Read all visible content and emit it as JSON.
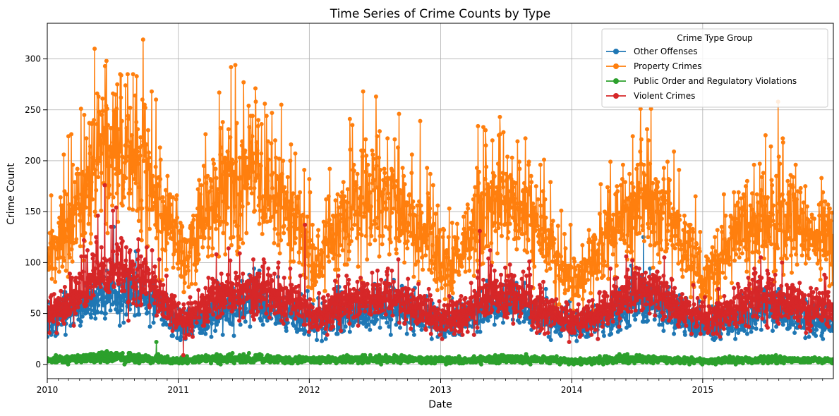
{
  "chart_data": {
    "type": "line",
    "title": "Time Series of Crime Counts by Type",
    "xlabel": "Date",
    "ylabel": "Crime Count",
    "xlim": [
      "2010-01-01",
      "2015-12-31"
    ],
    "ylim": [
      -14,
      335
    ],
    "x_ticks": [
      "2010",
      "2011",
      "2012",
      "2013",
      "2014",
      "2015"
    ],
    "y_ticks": [
      0,
      50,
      100,
      150,
      200,
      250,
      300
    ],
    "grid": true,
    "markers": true,
    "legend": {
      "title": "Crime Type Group",
      "placement": "top-right"
    },
    "frequency": "daily",
    "series": [
      {
        "name": "Other Offenses",
        "color": "#1f77b4",
        "monthly_mean": [
          {
            "x": "2010-01",
            "y": 42
          },
          {
            "x": "2010-03",
            "y": 52
          },
          {
            "x": "2010-05",
            "y": 65
          },
          {
            "x": "2010-07",
            "y": 70
          },
          {
            "x": "2010-09",
            "y": 68
          },
          {
            "x": "2010-11",
            "y": 52
          },
          {
            "x": "2011-01",
            "y": 38
          },
          {
            "x": "2011-03",
            "y": 45
          },
          {
            "x": "2011-05",
            "y": 55
          },
          {
            "x": "2011-07",
            "y": 60
          },
          {
            "x": "2011-09",
            "y": 58
          },
          {
            "x": "2011-11",
            "y": 50
          },
          {
            "x": "2012-01",
            "y": 42
          },
          {
            "x": "2012-03",
            "y": 46
          },
          {
            "x": "2012-05",
            "y": 52
          },
          {
            "x": "2012-07",
            "y": 55
          },
          {
            "x": "2012-09",
            "y": 52
          },
          {
            "x": "2012-11",
            "y": 46
          },
          {
            "x": "2013-01",
            "y": 40
          },
          {
            "x": "2013-03",
            "y": 46
          },
          {
            "x": "2013-05",
            "y": 55
          },
          {
            "x": "2013-07",
            "y": 58
          },
          {
            "x": "2013-09",
            "y": 52
          },
          {
            "x": "2013-11",
            "y": 42
          },
          {
            "x": "2014-01",
            "y": 36
          },
          {
            "x": "2014-03",
            "y": 44
          },
          {
            "x": "2014-05",
            "y": 55
          },
          {
            "x": "2014-07",
            "y": 62
          },
          {
            "x": "2014-09",
            "y": 55
          },
          {
            "x": "2014-11",
            "y": 44
          },
          {
            "x": "2015-01",
            "y": 36
          },
          {
            "x": "2015-03",
            "y": 42
          },
          {
            "x": "2015-05",
            "y": 50
          },
          {
            "x": "2015-07",
            "y": 55
          },
          {
            "x": "2015-09",
            "y": 48
          },
          {
            "x": "2015-11",
            "y": 40
          }
        ]
      },
      {
        "name": "Property Crimes",
        "color": "#ff7f0e",
        "monthly_mean": [
          {
            "x": "2010-01",
            "y": 110
          },
          {
            "x": "2010-03",
            "y": 145
          },
          {
            "x": "2010-05",
            "y": 195
          },
          {
            "x": "2010-07",
            "y": 210
          },
          {
            "x": "2010-09",
            "y": 195
          },
          {
            "x": "2010-11",
            "y": 150
          },
          {
            "x": "2011-01",
            "y": 100
          },
          {
            "x": "2011-03",
            "y": 140
          },
          {
            "x": "2011-05",
            "y": 175
          },
          {
            "x": "2011-07",
            "y": 185
          },
          {
            "x": "2011-09",
            "y": 170
          },
          {
            "x": "2011-11",
            "y": 150
          },
          {
            "x": "2012-01",
            "y": 100
          },
          {
            "x": "2012-03",
            "y": 125
          },
          {
            "x": "2012-05",
            "y": 160
          },
          {
            "x": "2012-07",
            "y": 165
          },
          {
            "x": "2012-09",
            "y": 155
          },
          {
            "x": "2012-11",
            "y": 125
          },
          {
            "x": "2013-01",
            "y": 95
          },
          {
            "x": "2013-03",
            "y": 120
          },
          {
            "x": "2013-05",
            "y": 160
          },
          {
            "x": "2013-07",
            "y": 160
          },
          {
            "x": "2013-09",
            "y": 140
          },
          {
            "x": "2013-11",
            "y": 105
          },
          {
            "x": "2014-01",
            "y": 75
          },
          {
            "x": "2014-03",
            "y": 110
          },
          {
            "x": "2014-05",
            "y": 145
          },
          {
            "x": "2014-07",
            "y": 160
          },
          {
            "x": "2014-09",
            "y": 145
          },
          {
            "x": "2014-11",
            "y": 115
          },
          {
            "x": "2015-01",
            "y": 85
          },
          {
            "x": "2015-03",
            "y": 115
          },
          {
            "x": "2015-05",
            "y": 140
          },
          {
            "x": "2015-07",
            "y": 145
          },
          {
            "x": "2015-09",
            "y": 135
          },
          {
            "x": "2015-11",
            "y": 120
          }
        ]
      },
      {
        "name": "Public Order and Regulatory Violations",
        "color": "#2ca02c",
        "monthly_mean": [
          {
            "x": "2010-01",
            "y": 4
          },
          {
            "x": "2010-03",
            "y": 5
          },
          {
            "x": "2010-05",
            "y": 7
          },
          {
            "x": "2010-07",
            "y": 7
          },
          {
            "x": "2010-09",
            "y": 6
          },
          {
            "x": "2010-11",
            "y": 5
          },
          {
            "x": "2011-01",
            "y": 4
          },
          {
            "x": "2011-03",
            "y": 5
          },
          {
            "x": "2011-05",
            "y": 5
          },
          {
            "x": "2011-07",
            "y": 6
          },
          {
            "x": "2011-09",
            "y": 5
          },
          {
            "x": "2011-11",
            "y": 4
          },
          {
            "x": "2012-01",
            "y": 4
          },
          {
            "x": "2012-03",
            "y": 4
          },
          {
            "x": "2012-05",
            "y": 5
          },
          {
            "x": "2012-07",
            "y": 5
          },
          {
            "x": "2012-09",
            "y": 5
          },
          {
            "x": "2012-11",
            "y": 4
          },
          {
            "x": "2013-01",
            "y": 4
          },
          {
            "x": "2013-03",
            "y": 4
          },
          {
            "x": "2013-05",
            "y": 5
          },
          {
            "x": "2013-07",
            "y": 5
          },
          {
            "x": "2013-09",
            "y": 5
          },
          {
            "x": "2013-11",
            "y": 4
          },
          {
            "x": "2014-01",
            "y": 3
          },
          {
            "x": "2014-03",
            "y": 4
          },
          {
            "x": "2014-05",
            "y": 5
          },
          {
            "x": "2014-07",
            "y": 5
          },
          {
            "x": "2014-09",
            "y": 5
          },
          {
            "x": "2014-11",
            "y": 4
          },
          {
            "x": "2015-01",
            "y": 3
          },
          {
            "x": "2015-03",
            "y": 4
          },
          {
            "x": "2015-05",
            "y": 4
          },
          {
            "x": "2015-07",
            "y": 5
          },
          {
            "x": "2015-09",
            "y": 4
          },
          {
            "x": "2015-11",
            "y": 4
          }
        ]
      },
      {
        "name": "Violent Crimes",
        "color": "#d62728",
        "monthly_mean": [
          {
            "x": "2010-01",
            "y": 48
          },
          {
            "x": "2010-03",
            "y": 62
          },
          {
            "x": "2010-05",
            "y": 90
          },
          {
            "x": "2010-07",
            "y": 95
          },
          {
            "x": "2010-09",
            "y": 88
          },
          {
            "x": "2010-11",
            "y": 65
          },
          {
            "x": "2011-01",
            "y": 42
          },
          {
            "x": "2011-03",
            "y": 58
          },
          {
            "x": "2011-05",
            "y": 72
          },
          {
            "x": "2011-07",
            "y": 75
          },
          {
            "x": "2011-09",
            "y": 70
          },
          {
            "x": "2011-11",
            "y": 62
          },
          {
            "x": "2012-01",
            "y": 45
          },
          {
            "x": "2012-03",
            "y": 55
          },
          {
            "x": "2012-05",
            "y": 65
          },
          {
            "x": "2012-07",
            "y": 66
          },
          {
            "x": "2012-09",
            "y": 62
          },
          {
            "x": "2012-11",
            "y": 52
          },
          {
            "x": "2013-01",
            "y": 44
          },
          {
            "x": "2013-03",
            "y": 52
          },
          {
            "x": "2013-05",
            "y": 68
          },
          {
            "x": "2013-07",
            "y": 70
          },
          {
            "x": "2013-09",
            "y": 60
          },
          {
            "x": "2013-11",
            "y": 48
          },
          {
            "x": "2014-01",
            "y": 38
          },
          {
            "x": "2014-03",
            "y": 50
          },
          {
            "x": "2014-05",
            "y": 65
          },
          {
            "x": "2014-07",
            "y": 72
          },
          {
            "x": "2014-09",
            "y": 65
          },
          {
            "x": "2014-11",
            "y": 52
          },
          {
            "x": "2015-01",
            "y": 42
          },
          {
            "x": "2015-03",
            "y": 52
          },
          {
            "x": "2015-05",
            "y": 62
          },
          {
            "x": "2015-07",
            "y": 68
          },
          {
            "x": "2015-09",
            "y": 60
          },
          {
            "x": "2015-11",
            "y": 55
          }
        ]
      }
    ],
    "peaks": [
      {
        "series": "Property Crimes",
        "x": "2010-06-15",
        "y": 298
      },
      {
        "series": "Property Crimes",
        "x": "2010-09-25",
        "y": 319
      },
      {
        "series": "Property Crimes",
        "x": "2010-08-28",
        "y": 285
      },
      {
        "series": "Property Crimes",
        "x": "2010-05-20",
        "y": 266
      },
      {
        "series": "Property Crimes",
        "x": "2010-04-05",
        "y": 251
      },
      {
        "series": "Property Crimes",
        "x": "2011-04-25",
        "y": 267
      },
      {
        "series": "Property Crimes",
        "x": "2011-08-05",
        "y": 258
      },
      {
        "series": "Property Crimes",
        "x": "2012-05-30",
        "y": 268
      },
      {
        "series": "Property Crimes",
        "x": "2012-07-05",
        "y": 263
      },
      {
        "series": "Property Crimes",
        "x": "2012-11-05",
        "y": 239
      },
      {
        "series": "Property Crimes",
        "x": "2013-04-15",
        "y": 234
      },
      {
        "series": "Property Crimes",
        "x": "2014-08-10",
        "y": 251
      },
      {
        "series": "Property Crimes",
        "x": "2014-06-20",
        "y": 224
      },
      {
        "series": "Property Crimes",
        "x": "2015-07-30",
        "y": 258
      },
      {
        "series": "Property Crimes",
        "x": "2015-07-10",
        "y": 214
      },
      {
        "series": "Violent Crimes",
        "x": "2010-06-10",
        "y": 176
      },
      {
        "series": "Violent Crimes",
        "x": "2011-12-20",
        "y": 137
      },
      {
        "series": "Violent Crimes",
        "x": "2013-04-20",
        "y": 131
      },
      {
        "series": "Violent Crimes",
        "x": "2011-01-15",
        "y": 9
      },
      {
        "series": "Other Offenses",
        "x": "2010-07-05",
        "y": 135
      },
      {
        "series": "Other Offenses",
        "x": "2014-07-20",
        "y": 125
      },
      {
        "series": "Public Order and Regulatory Violations",
        "x": "2010-11-01",
        "y": 22
      }
    ]
  }
}
